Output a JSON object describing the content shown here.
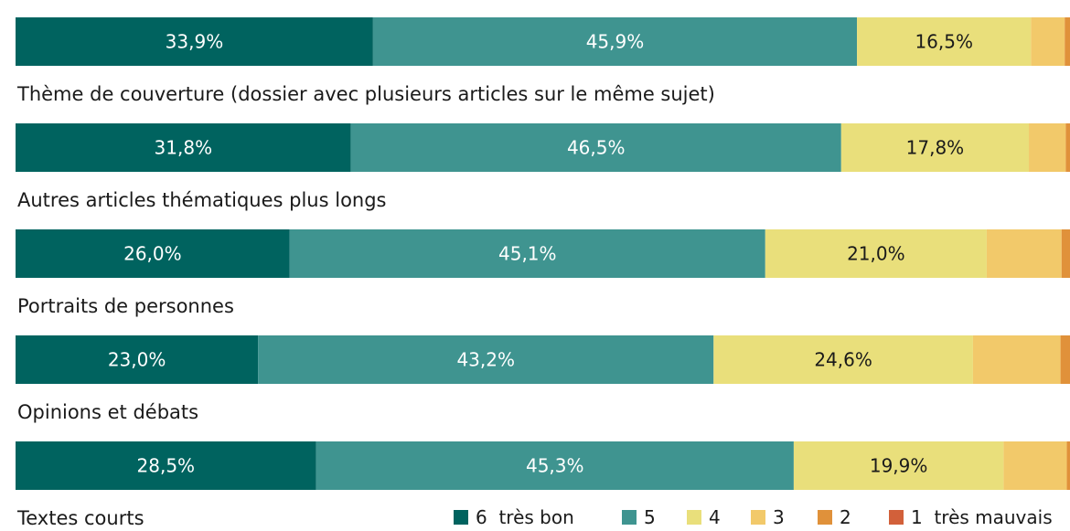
{
  "chart_data": {
    "type": "bar",
    "orientation": "horizontal",
    "stacked": true,
    "xlim": [
      0,
      100
    ],
    "categories": [
      "Thème de couverture (dossier avec plusieurs articles sur le même sujet)",
      "Autres articles thématiques plus longs",
      "Portraits de personnes",
      "Opinions et débats",
      "Textes courts"
    ],
    "series": [
      {
        "name": "6  très bon",
        "color": "#00635f",
        "text_color": "#ffffff",
        "values": [
          33.9,
          31.8,
          26.0,
          23.0,
          28.5
        ],
        "labels": [
          "33,9%",
          "31,8%",
          "26,0%",
          "23,0%",
          "28,5%"
        ]
      },
      {
        "name": "5",
        "color": "#3f9490",
        "text_color": "#ffffff",
        "values": [
          45.9,
          46.5,
          45.1,
          43.2,
          45.3
        ],
        "labels": [
          "45,9%",
          "46,5%",
          "45,1%",
          "43,2%",
          "45,3%"
        ]
      },
      {
        "name": "4",
        "color": "#e9df7b",
        "text_color": "#1a1a1a",
        "values": [
          16.5,
          17.8,
          21.0,
          24.6,
          19.9
        ],
        "labels": [
          "16,5%",
          "17,8%",
          "21,0%",
          "24,6%",
          "19,9%"
        ]
      },
      {
        "name": "3",
        "color": "#f2c96a",
        "text_color": "#1a1a1a",
        "values": [
          3.2,
          3.5,
          7.1,
          8.3,
          6.0
        ],
        "labels": [
          "",
          "",
          "",
          "",
          ""
        ]
      },
      {
        "name": "2",
        "color": "#e0913a",
        "text_color": "#1a1a1a",
        "values": [
          0.5,
          0.4,
          0.8,
          0.9,
          0.3
        ],
        "labels": [
          "",
          "",
          "",
          "",
          ""
        ]
      },
      {
        "name": "1  très mauvais",
        "color": "#d2603a",
        "text_color": "#1a1a1a",
        "values": [
          0.0,
          0.0,
          0.0,
          0.2,
          0.0
        ],
        "labels": [
          "",
          "",
          "",
          "",
          ""
        ]
      }
    ],
    "legend_position": "bottom-right",
    "grid": false
  }
}
